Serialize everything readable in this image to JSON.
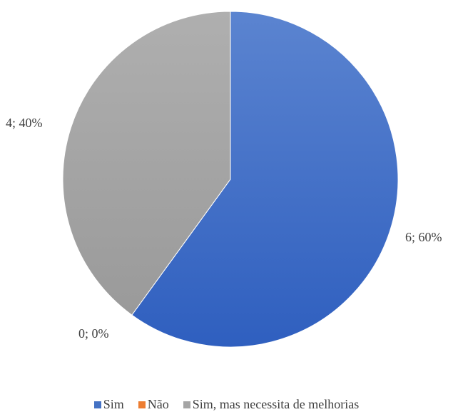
{
  "chart_data": {
    "type": "pie",
    "categories": [
      "Sim",
      "Não",
      "Sim, mas necessita de melhorias"
    ],
    "values": [
      6,
      0,
      4
    ],
    "percentages": [
      "60%",
      "0%",
      "40%"
    ],
    "data_labels": [
      "6; 60%",
      "0; 0%",
      "4; 40%"
    ],
    "colors": [
      "#4472C4",
      "#ED7D31",
      "#A5A5A5"
    ],
    "legend_position": "bottom",
    "title": ""
  }
}
